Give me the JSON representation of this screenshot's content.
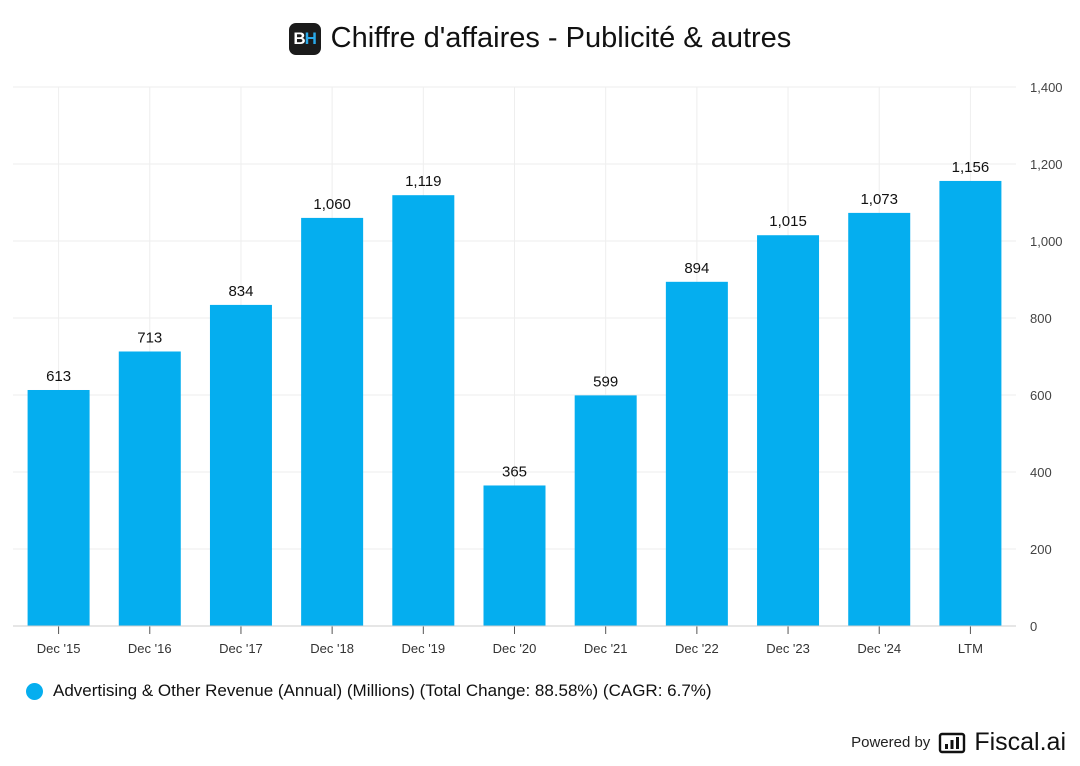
{
  "header": {
    "logo_text": "BH",
    "title": "Chiffre d'affaires - Publicité & autres"
  },
  "chart_data": {
    "type": "bar",
    "title": "Chiffre d'affaires - Publicité & autres",
    "categories": [
      "Dec '15",
      "Dec '16",
      "Dec '17",
      "Dec '18",
      "Dec '19",
      "Dec '20",
      "Dec '21",
      "Dec '22",
      "Dec '23",
      "Dec '24",
      "LTM"
    ],
    "series": [
      {
        "name": "Advertising & Other Revenue (Annual) (Millions) (Total Change: 88.58%) (CAGR: 6.7%)",
        "values": [
          613,
          713,
          834,
          1060,
          1119,
          365,
          599,
          894,
          1015,
          1073,
          1156
        ],
        "value_labels": [
          "613",
          "713",
          "834",
          "1,060",
          "1,119",
          "365",
          "599",
          "894",
          "1,015",
          "1,073",
          "1,156"
        ],
        "color": "#05aeef"
      }
    ],
    "ylim": [
      0,
      1400
    ],
    "yticks": [
      0,
      200,
      400,
      600,
      800,
      1000,
      1200,
      1400
    ],
    "ytick_labels": [
      "0",
      "200",
      "400",
      "600",
      "800",
      "1,000",
      "1,200",
      "1,400"
    ],
    "y_axis_side": "right",
    "grid": true,
    "legend_position": "bottom-left",
    "xlabel": "",
    "ylabel": ""
  },
  "legend": {
    "label": "Advertising & Other Revenue (Annual) (Millions) (Total Change: 88.58%) (CAGR: 6.7%)"
  },
  "footer": {
    "powered_label": "Powered by",
    "brand": "Fiscal.ai"
  },
  "colors": {
    "bar": "#05aeef",
    "grid": "#eeeeee",
    "axis": "#cccccc"
  }
}
